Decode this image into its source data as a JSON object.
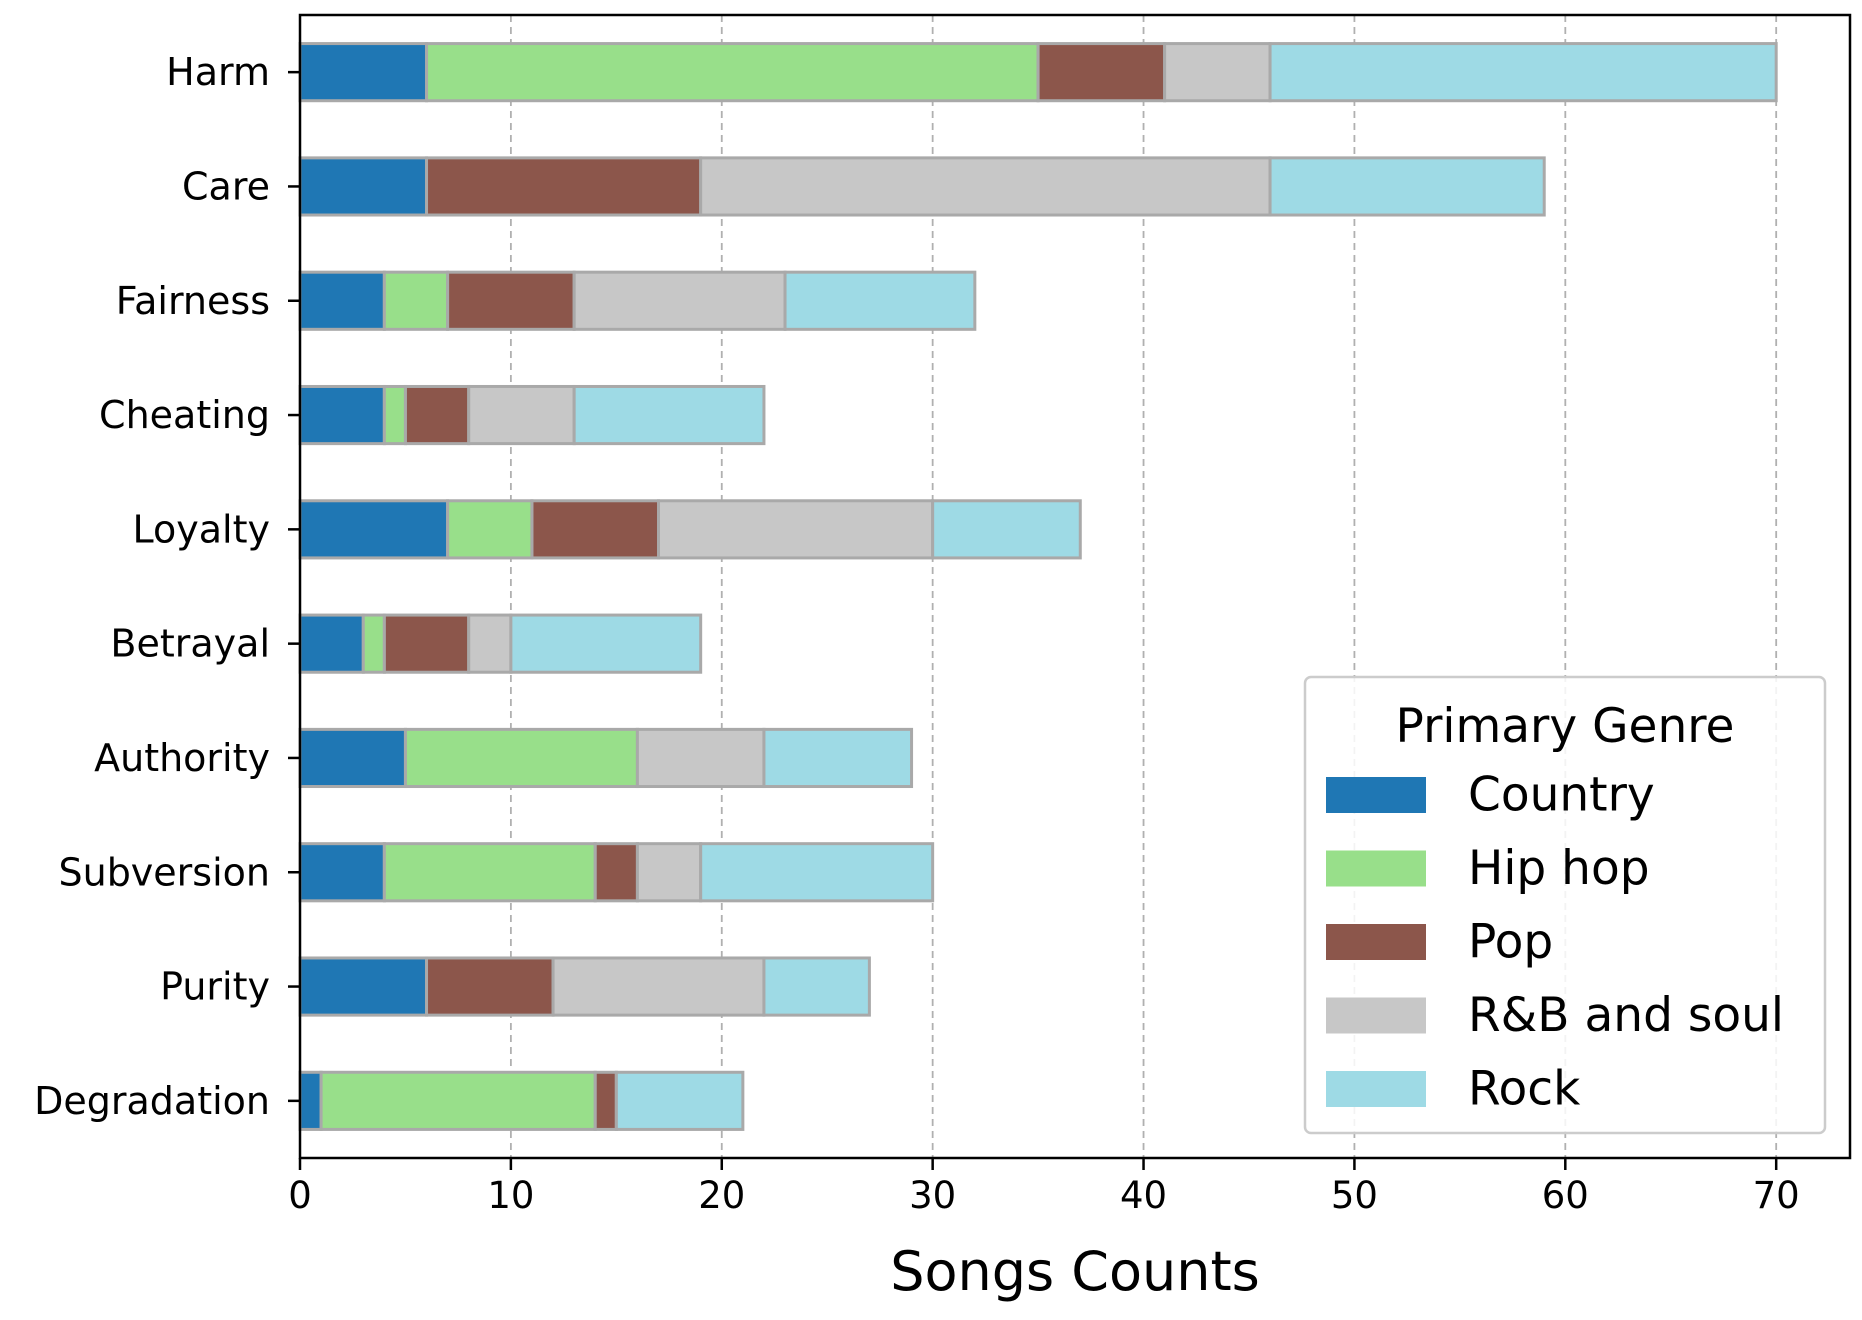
{
  "chart_data": {
    "type": "bar",
    "orientation": "horizontal",
    "stacked": true,
    "categories": [
      "Harm",
      "Care",
      "Fairness",
      "Cheating",
      "Loyalty",
      "Betrayal",
      "Authority",
      "Subversion",
      "Purity",
      "Degradation"
    ],
    "series": [
      {
        "name": "Country",
        "color": "#1f77b4",
        "values": [
          6,
          6,
          4,
          4,
          7,
          3,
          5,
          4,
          6,
          1
        ]
      },
      {
        "name": "Hip hop",
        "color": "#98df8a",
        "values": [
          29,
          0,
          3,
          1,
          4,
          1,
          11,
          10,
          0,
          13
        ]
      },
      {
        "name": "Pop",
        "color": "#8c564b",
        "values": [
          6,
          13,
          6,
          3,
          6,
          4,
          0,
          2,
          6,
          1
        ]
      },
      {
        "name": "R&B and soul",
        "color": "#c7c7c7",
        "values": [
          5,
          27,
          10,
          5,
          13,
          2,
          6,
          3,
          10,
          0
        ]
      },
      {
        "name": "Rock",
        "color": "#9edae5",
        "values": [
          24,
          13,
          9,
          9,
          7,
          9,
          7,
          11,
          5,
          6
        ]
      }
    ],
    "xlabel": "Songs Counts",
    "ylabel": "",
    "xlim": [
      0,
      73.5
    ],
    "xticks": [
      0,
      10,
      20,
      30,
      40,
      50,
      60,
      70
    ],
    "grid": "vertical dashed",
    "legend": {
      "title": "Primary Genre",
      "placement": "lower-right"
    }
  }
}
